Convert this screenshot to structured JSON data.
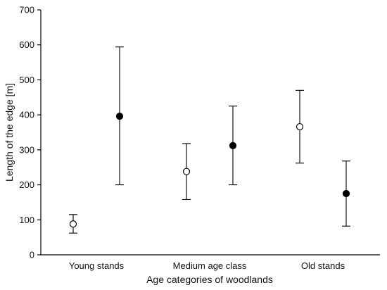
{
  "chart_data": {
    "type": "scatter",
    "title": "",
    "xlabel": "Age categories of woodlands",
    "ylabel": "Length of the edge [m]",
    "ylim": [
      0,
      700
    ],
    "yticks": [
      0,
      100,
      200,
      300,
      400,
      500,
      600,
      700
    ],
    "categories": [
      "Young stands",
      "Medium age class",
      "Old stands"
    ],
    "grid": false,
    "legend": "none",
    "series": [
      {
        "marker": "open-circle",
        "values": [
          88,
          238,
          366
        ],
        "lower": [
          62,
          158,
          262
        ],
        "upper": [
          115,
          318,
          470
        ]
      },
      {
        "marker": "filled-circle",
        "values": [
          396,
          312,
          175
        ],
        "lower": [
          200,
          200,
          82
        ],
        "upper": [
          594,
          425,
          268
        ]
      }
    ],
    "colors": {
      "marker": "#000000",
      "axis": "#000000",
      "background": "#ffffff"
    }
  }
}
